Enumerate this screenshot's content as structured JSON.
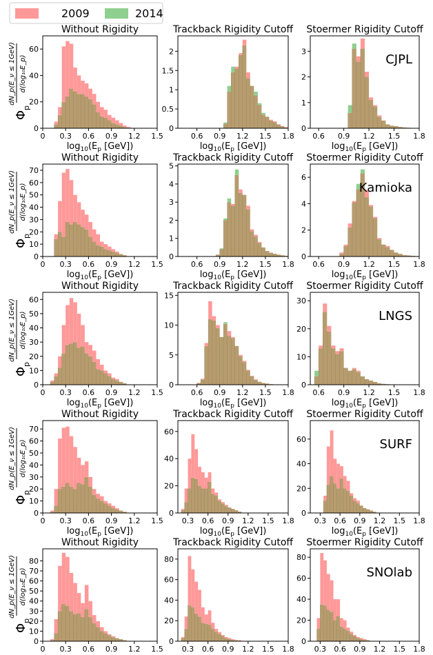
{
  "legend": {
    "items": [
      {
        "label": "2009",
        "color": "#ff9999"
      },
      {
        "label": "2014",
        "color": "#8fcf8f"
      }
    ]
  },
  "colors": {
    "c2009": "#ff9999",
    "c2014": "#8fcf8f",
    "overlap": "#b79c6e"
  },
  "ylabel": {
    "phi": "Φ",
    "sub": "p",
    "num": "dN_p(E_ν ≤ 1GeV)",
    "den": "d(log₁₀E_p)"
  },
  "chart_data": [
    {
      "site": "CJPL",
      "row": 0,
      "col": 0,
      "type": "bar",
      "title": "Without Rigidity",
      "xlabel": "log10(Ep [GeV])",
      "xlim": [
        0,
        1.5
      ],
      "ylim": [
        0,
        70
      ],
      "yticks": [
        0,
        20,
        40,
        60
      ],
      "xticks": [
        0,
        0.3,
        0.6,
        0.9,
        1.2,
        1.5
      ],
      "bin_start": 0.15,
      "bin_width": 0.05,
      "series": [
        {
          "name": "2009",
          "values": [
            5,
            16,
            62,
            66,
            64,
            46,
            40,
            36,
            34,
            30,
            26,
            20,
            16,
            14,
            10,
            8,
            6,
            4,
            2,
            1
          ]
        },
        {
          "name": "2014",
          "values": [
            3,
            10,
            20,
            24,
            30,
            28,
            26,
            26,
            24,
            22,
            18,
            12,
            9,
            8,
            6,
            4,
            3,
            2,
            1,
            0
          ]
        }
      ]
    },
    {
      "site": "CJPL",
      "row": 0,
      "col": 1,
      "type": "bar",
      "title": "Trackback Rigidity Cutoff",
      "xlabel": "log10(Ep [GeV])",
      "xlim": [
        0.35,
        1.8
      ],
      "ylim": [
        0,
        2.4
      ],
      "yticks": [
        0,
        0.5,
        1.0,
        1.5,
        2.0
      ],
      "xticks": [
        0.6,
        0.9,
        1.2,
        1.5,
        1.8
      ],
      "bin_start": 0.95,
      "bin_width": 0.05,
      "series": [
        {
          "name": "2009",
          "values": [
            0.12,
            0.95,
            1.45,
            1.6,
            1.95,
            2.3,
            1.45,
            1.1,
            0.85,
            0.6,
            0.35,
            0.3,
            0.22,
            0.18,
            0.1,
            0.06,
            0.03
          ]
        },
        {
          "name": "2014",
          "values": [
            0.15,
            1.1,
            1.6,
            1.55,
            1.9,
            2.15,
            1.3,
            1.1,
            0.95,
            0.65,
            0.4,
            0.3,
            0.2,
            0.16,
            0.1,
            0.05,
            0.02
          ]
        }
      ]
    },
    {
      "site": "CJPL",
      "row": 0,
      "col": 2,
      "type": "bar",
      "title": "Stoermer Rigidity Cutoff",
      "xlabel": "log10(Ep [GeV])",
      "xlim": [
        0.5,
        1.8
      ],
      "ylim": [
        0,
        3.6
      ],
      "yticks": [
        0,
        1,
        2,
        3
      ],
      "xticks": [
        0.6,
        0.9,
        1.2,
        1.5,
        1.8
      ],
      "bin_start": 0.95,
      "bin_width": 0.05,
      "series": [
        {
          "name": "2009",
          "values": [
            0.6,
            3.1,
            2.8,
            3.5,
            2.2,
            1.2,
            0.9,
            0.5,
            0.3,
            0.15,
            0.1,
            0.08,
            0.05,
            0.03,
            0.02,
            0.01,
            0.01
          ]
        },
        {
          "name": "2014",
          "values": [
            0.9,
            3.3,
            2.6,
            3.1,
            2.0,
            1.1,
            0.85,
            0.45,
            0.3,
            0.15,
            0.1,
            0.08,
            0.05,
            0.03,
            0.02,
            0.01,
            0.01
          ]
        }
      ]
    },
    {
      "site": "Kamioka",
      "row": 1,
      "col": 0,
      "type": "bar",
      "title": "Without Rigidity",
      "xlabel": "log10(Ep [GeV])",
      "xlim": [
        0,
        1.5
      ],
      "ylim": [
        0,
        75
      ],
      "yticks": [
        0,
        10,
        20,
        30,
        40,
        50,
        60,
        70
      ],
      "xticks": [
        0,
        0.3,
        0.6,
        0.9,
        1.2,
        1.5
      ],
      "bin_start": 0.15,
      "bin_width": 0.05,
      "series": [
        {
          "name": "2009",
          "values": [
            18,
            45,
            68,
            71,
            62,
            50,
            44,
            38,
            34,
            28,
            22,
            18,
            12,
            10,
            8,
            6,
            4,
            2,
            1,
            0
          ]
        },
        {
          "name": "2014",
          "values": [
            14,
            20,
            16,
            28,
            26,
            28,
            26,
            24,
            22,
            16,
            12,
            9,
            8,
            6,
            5,
            4,
            3,
            2,
            1,
            0
          ]
        }
      ]
    },
    {
      "site": "Kamioka",
      "row": 1,
      "col": 1,
      "type": "bar",
      "title": "Trackback Rigidity Cutoff",
      "xlabel": "log10(Ep [GeV])",
      "xlim": [
        0.35,
        1.8
      ],
      "ylim": [
        0,
        5.1
      ],
      "yticks": [
        0,
        1,
        2,
        3,
        4,
        5
      ],
      "xticks": [
        0.6,
        0.9,
        1.2,
        1.5,
        1.8
      ],
      "bin_start": 0.85,
      "bin_width": 0.05,
      "series": [
        {
          "name": "2009",
          "values": [
            0.1,
            0.4,
            2.0,
            3.0,
            2.9,
            4.5,
            3.7,
            3.4,
            2.8,
            1.5,
            1.2,
            0.8,
            0.5,
            0.3,
            0.22,
            0.15,
            0.1,
            0.07,
            0.04
          ]
        },
        {
          "name": "2014",
          "values": [
            0.1,
            0.45,
            2.1,
            3.2,
            2.8,
            4.8,
            3.5,
            3.4,
            2.6,
            1.4,
            1.1,
            0.75,
            0.5,
            0.3,
            0.2,
            0.15,
            0.1,
            0.06,
            0.03
          ]
        }
      ]
    },
    {
      "site": "Kamioka",
      "row": 1,
      "col": 2,
      "type": "bar",
      "title": "Stoermer Rigidity Cutoff",
      "xlabel": "log10(Ep [GeV])",
      "xlim": [
        0.5,
        1.8
      ],
      "ylim": [
        0,
        7
      ],
      "yticks": [
        0,
        2,
        4,
        6
      ],
      "xticks": [
        0.6,
        0.9,
        1.2,
        1.5,
        1.8
      ],
      "bin_start": 0.85,
      "bin_width": 0.05,
      "series": [
        {
          "name": "2009",
          "values": [
            0.3,
            0.9,
            2.5,
            4.2,
            5.1,
            6.3,
            5.0,
            3.9,
            3.0,
            1.4,
            0.9,
            0.8,
            0.5,
            0.3,
            0.2,
            0.1,
            0.08,
            0.05,
            0.03
          ]
        },
        {
          "name": "2014",
          "values": [
            0.2,
            0.8,
            2.2,
            4.1,
            5.5,
            6.6,
            4.5,
            3.8,
            2.9,
            1.3,
            0.9,
            0.7,
            0.5,
            0.3,
            0.2,
            0.1,
            0.08,
            0.05,
            0.03
          ]
        }
      ]
    },
    {
      "site": "LNGS",
      "row": 2,
      "col": 0,
      "type": "bar",
      "title": "Without Rigidity",
      "xlabel": "log10(Ep [GeV])",
      "xlim": [
        0,
        1.5
      ],
      "ylim": [
        0,
        65
      ],
      "yticks": [
        0,
        10,
        20,
        30,
        40,
        50,
        60
      ],
      "xticks": [
        0,
        0.3,
        0.6,
        0.9,
        1.2,
        1.5
      ],
      "bin_start": 0.1,
      "bin_width": 0.05,
      "series": [
        {
          "name": "2009",
          "values": [
            3,
            8,
            20,
            42,
            56,
            61,
            58,
            50,
            42,
            30,
            28,
            24,
            18,
            14,
            10,
            8,
            5,
            4,
            2,
            1,
            0
          ]
        },
        {
          "name": "2014",
          "values": [
            2,
            6,
            12,
            22,
            28,
            29,
            30,
            26,
            27,
            22,
            20,
            16,
            11,
            10,
            8,
            6,
            4,
            3,
            2,
            1,
            0
          ]
        }
      ]
    },
    {
      "site": "LNGS",
      "row": 2,
      "col": 1,
      "type": "bar",
      "title": "Trackback Rigidity Cutoff",
      "xlabel": "log10(Ep [GeV])",
      "xlim": [
        0.35,
        1.8
      ],
      "ylim": [
        0,
        15.5
      ],
      "yticks": [
        0,
        5,
        10,
        15
      ],
      "xticks": [
        0.6,
        0.9,
        1.2,
        1.5,
        1.8
      ],
      "bin_start": 0.6,
      "bin_width": 0.05,
      "series": [
        {
          "name": "2009",
          "values": [
            0.3,
            1.0,
            7.0,
            14.0,
            11.5,
            10.0,
            8.0,
            10.2,
            9.0,
            8.0,
            6.5,
            5.0,
            4.0,
            2.5,
            1.5,
            0.9,
            0.5,
            0.3,
            0.2,
            0.1
          ]
        },
        {
          "name": "2014",
          "values": [
            0.3,
            0.9,
            6.5,
            11.0,
            10.8,
            9.5,
            8.0,
            10.5,
            8.2,
            7.8,
            6.5,
            4.8,
            3.8,
            2.4,
            1.4,
            0.8,
            0.5,
            0.3,
            0.2,
            0.1
          ]
        }
      ]
    },
    {
      "site": "LNGS",
      "row": 2,
      "col": 2,
      "type": "bar",
      "title": "Stoermer Rigidity Cutoff",
      "xlabel": "log10(Ep [GeV])",
      "xlim": [
        0.5,
        1.8
      ],
      "ylim": [
        0,
        33
      ],
      "yticks": [
        0,
        10,
        20,
        30
      ],
      "xticks": [
        0.6,
        0.9,
        1.2,
        1.5,
        1.8
      ],
      "bin_start": 0.55,
      "bin_width": 0.05,
      "series": [
        {
          "name": "2009",
          "values": [
            3,
            14,
            29,
            21,
            14,
            12,
            13,
            6,
            5,
            6,
            5,
            3,
            2,
            1.5,
            1,
            0.5,
            0.3,
            0.2,
            0.1
          ]
        },
        {
          "name": "2014",
          "values": [
            5,
            13,
            26,
            19,
            13,
            11,
            12,
            6,
            5,
            5.5,
            4.5,
            3,
            2,
            1.5,
            1,
            0.5,
            0.3,
            0.2,
            0.1
          ]
        }
      ]
    },
    {
      "site": "SURF",
      "row": 3,
      "col": 0,
      "type": "bar",
      "title": "Without Rigidity",
      "xlabel": "log10(Ep [GeV])",
      "xlim": [
        0,
        1.5
      ],
      "ylim": [
        0,
        77
      ],
      "yticks": [
        0,
        10,
        20,
        30,
        40,
        50,
        60,
        70
      ],
      "xticks": [
        0,
        0.3,
        0.6,
        0.9,
        1.2,
        1.5
      ],
      "bin_start": 0.1,
      "bin_width": 0.05,
      "series": [
        {
          "name": "2009",
          "values": [
            2,
            20,
            62,
            71,
            72,
            64,
            55,
            46,
            40,
            43,
            30,
            20,
            16,
            14,
            10,
            8,
            6,
            4,
            2,
            1,
            0
          ]
        },
        {
          "name": "2014",
          "values": [
            1,
            6,
            20,
            22,
            25,
            22,
            20,
            25,
            24,
            30,
            22,
            15,
            12,
            10,
            8,
            6,
            4,
            3,
            2,
            1,
            0
          ]
        }
      ]
    },
    {
      "site": "SURF",
      "row": 3,
      "col": 1,
      "type": "bar",
      "title": "Trackback Rigidity Cutoff",
      "xlabel": "log10(Ep [GeV])",
      "xlim": [
        0.15,
        1.8
      ],
      "ylim": [
        0,
        68
      ],
      "yticks": [
        0,
        20,
        40,
        60
      ],
      "xticks": [
        0.3,
        0.6,
        0.9,
        1.2,
        1.5,
        1.8
      ],
      "bin_start": 0.2,
      "bin_width": 0.05,
      "series": [
        {
          "name": "2009",
          "values": [
            3,
            18,
            40,
            58,
            47,
            34,
            30,
            26,
            30,
            18,
            15,
            10,
            8,
            6,
            4,
            3,
            2,
            1
          ]
        },
        {
          "name": "2014",
          "values": [
            2,
            8,
            18,
            26,
            25,
            20,
            18,
            18,
            23,
            14,
            13,
            9,
            7,
            5,
            4,
            3,
            2,
            1
          ]
        }
      ]
    },
    {
      "site": "SURF",
      "row": 3,
      "col": 2,
      "type": "bar",
      "title": "Stoermer Rigidity Cutoff",
      "xlabel": "log10(Ep [GeV])",
      "xlim": [
        0.15,
        1.8
      ],
      "ylim": [
        0,
        75
      ],
      "yticks": [
        0,
        20,
        40,
        60
      ],
      "xticks": [
        0.3,
        0.6,
        0.9,
        1.2,
        1.5,
        1.8
      ],
      "bin_start": 0.35,
      "bin_width": 0.05,
      "series": [
        {
          "name": "2009",
          "values": [
            14,
            54,
            67,
            44,
            40,
            38,
            30,
            26,
            16,
            12,
            10,
            6,
            4,
            3,
            2,
            1
          ]
        },
        {
          "name": "2014",
          "values": [
            10,
            23,
            30,
            24,
            20,
            28,
            20,
            18,
            14,
            10,
            8,
            6,
            4,
            3,
            2,
            1
          ]
        }
      ]
    },
    {
      "site": "SNOlab",
      "row": 4,
      "col": 0,
      "type": "bar",
      "title": "Without Rigidity",
      "xlabel": "log10(Ep [GeV])",
      "xlim": [
        0,
        1.5
      ],
      "ylim": [
        0,
        92
      ],
      "yticks": [
        0,
        10,
        20,
        30,
        40,
        50,
        60,
        70,
        80
      ],
      "xticks": [
        0,
        0.3,
        0.6,
        0.9,
        1.2,
        1.5
      ],
      "bin_start": 0.1,
      "bin_width": 0.05,
      "series": [
        {
          "name": "2009",
          "values": [
            2,
            22,
            75,
            88,
            84,
            68,
            58,
            48,
            38,
            56,
            40,
            26,
            20,
            14,
            10,
            7,
            5,
            3,
            2,
            1,
            0
          ]
        },
        {
          "name": "2014",
          "values": [
            1,
            8,
            30,
            37,
            35,
            30,
            27,
            28,
            24,
            32,
            24,
            18,
            14,
            10,
            8,
            6,
            4,
            3,
            2,
            1,
            0
          ]
        }
      ]
    },
    {
      "site": "SNOlab",
      "row": 4,
      "col": 1,
      "type": "bar",
      "title": "Trackback Rigidity Cutoff",
      "xlabel": "log10(Ep [GeV])",
      "xlim": [
        0.15,
        1.8
      ],
      "ylim": [
        0,
        90
      ],
      "yticks": [
        0,
        20,
        40,
        60,
        80
      ],
      "xticks": [
        0.3,
        0.6,
        0.9,
        1.2,
        1.5,
        1.8
      ],
      "bin_start": 0.2,
      "bin_width": 0.05,
      "series": [
        {
          "name": "2009",
          "values": [
            4,
            24,
            83,
            70,
            58,
            50,
            33,
            26,
            30,
            18,
            12,
            9,
            6,
            4,
            3,
            2,
            1,
            1
          ]
        },
        {
          "name": "2014",
          "values": [
            3,
            12,
            35,
            33,
            27,
            24,
            18,
            17,
            16,
            12,
            9,
            7,
            5,
            3,
            2,
            1,
            1,
            0
          ]
        }
      ]
    },
    {
      "site": "SNOlab",
      "row": 4,
      "col": 2,
      "type": "bar",
      "title": "Stoermer Rigidity Cutoff",
      "xlabel": "log10(Ep [GeV])",
      "xlim": [
        0.15,
        1.8
      ],
      "ylim": [
        0,
        88
      ],
      "yticks": [
        0,
        20,
        40,
        60,
        80
      ],
      "xticks": [
        0.3,
        0.6,
        0.9,
        1.2,
        1.5,
        1.8
      ],
      "bin_start": 0.25,
      "bin_width": 0.05,
      "series": [
        {
          "name": "2009",
          "values": [
            22,
            84,
            77,
            64,
            58,
            40,
            40,
            22,
            20,
            13,
            9,
            6,
            4,
            3,
            2,
            1
          ]
        },
        {
          "name": "2014",
          "values": [
            12,
            35,
            34,
            30,
            28,
            20,
            24,
            14,
            12,
            10,
            7,
            5,
            3,
            2,
            1,
            1
          ]
        }
      ]
    }
  ]
}
